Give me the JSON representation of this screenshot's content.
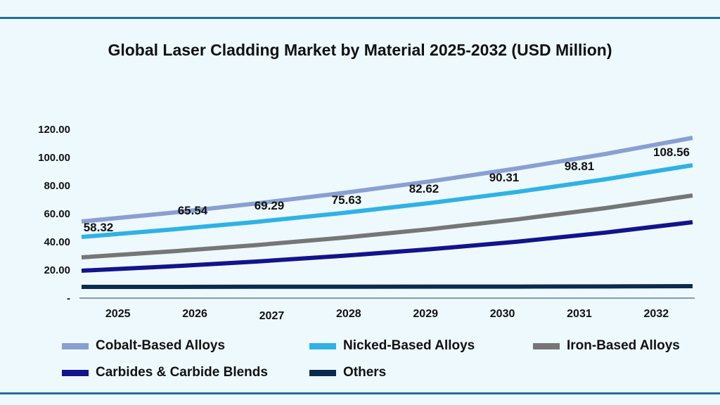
{
  "chart_data": {
    "type": "line",
    "title": "Global Laser Cladding Market by Material 2025-2032 (USD Million)",
    "categories": [
      "2025",
      "2026",
      "2027",
      "2028",
      "2029",
      "2030",
      "2031",
      "2032"
    ],
    "y_ticks": [
      "-",
      "20.00",
      "40.00",
      "60.00",
      "80.00",
      "100.00",
      "120.00"
    ],
    "ylim": [
      0,
      120
    ],
    "grid": false,
    "legend_position": "bottom",
    "series": [
      {
        "name": "Cobalt-Based Alloys",
        "color": "#8a9fd1",
        "values": [
          54,
          60,
          66.8,
          74.3,
          82.6,
          91.8,
          102,
          113.5
        ]
      },
      {
        "name": "Nicked-Based Alloys",
        "color": "#2fb2e4",
        "values": [
          43,
          48.1,
          53.7,
          60.1,
          67.2,
          75.1,
          84,
          94
        ]
      },
      {
        "name": "Iron-Based Alloys",
        "color": "#767676",
        "values": [
          28.5,
          32.6,
          37.2,
          42.5,
          48.6,
          55.6,
          63.5,
          72.5
        ]
      },
      {
        "name": "Carbides & Carbide Blends",
        "color": "#13138c",
        "values": [
          19,
          22,
          25.5,
          29.6,
          34.3,
          39.7,
          46.1,
          53.5
        ]
      },
      {
        "name": "Others",
        "color": "#0b2a4f",
        "values": [
          7.5,
          7.5,
          7.6,
          7.6,
          7.7,
          7.7,
          7.8,
          8
        ]
      }
    ],
    "data_labels": [
      "58.32",
      "65.54",
      "69.29",
      "75.63",
      "82.62",
      "90.31",
      "98.81",
      "108.56"
    ]
  }
}
